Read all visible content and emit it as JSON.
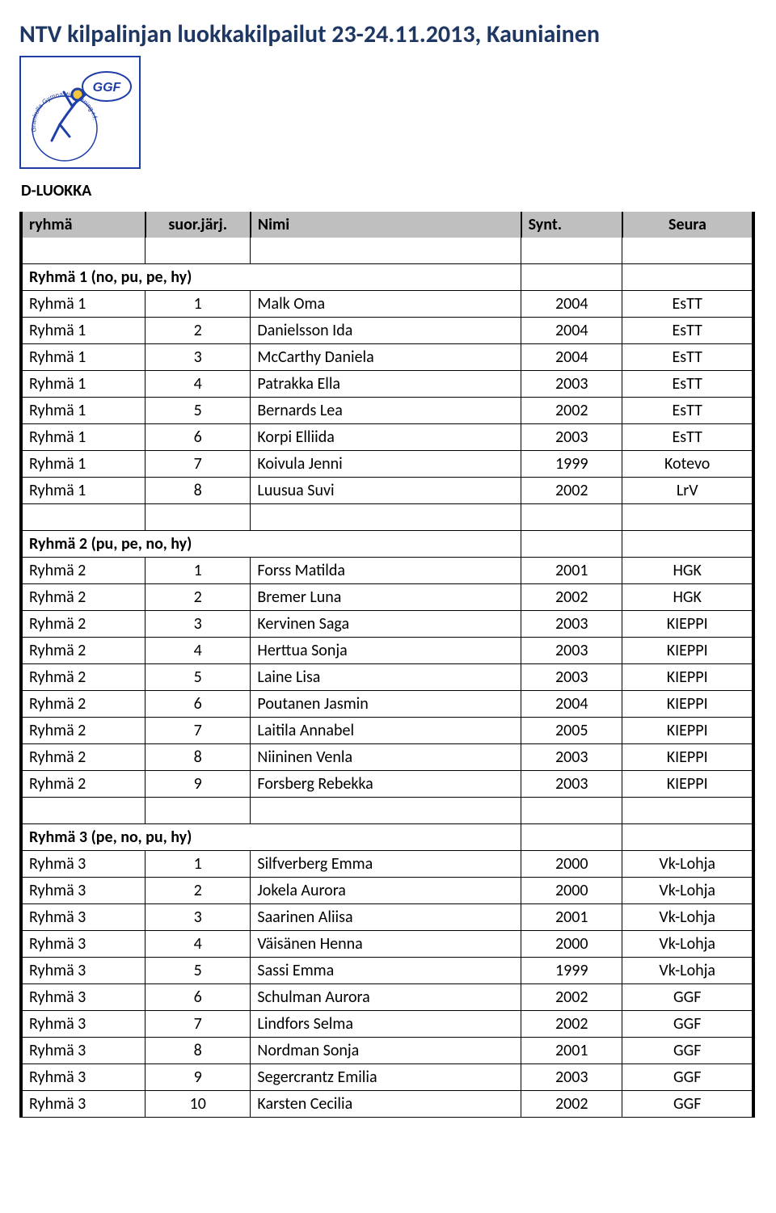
{
  "title": "NTV kilpalinjan luokkakilpailut 23-24.11.2013, Kauniainen",
  "section_label": "D-LUOKKA",
  "logo": {
    "text_top": "GGF",
    "text_ring": "Grankulla Gymnastikförening r.f.",
    "colors": {
      "blue": "#1f3fa8",
      "yellow": "#f5c53a",
      "bg": "#ffffff"
    }
  },
  "columns": {
    "ryhma": "ryhmä",
    "jarj": "suor.järj.",
    "nimi": "Nimi",
    "synt": "Synt.",
    "seura": "Seura"
  },
  "groups": [
    {
      "header": "Ryhmä 1 (no, pu, pe, hy)",
      "rows": [
        {
          "ryhma": "Ryhmä 1",
          "jarj": "1",
          "nimi": "Malk Oma",
          "synt": "2004",
          "seura": "EsTT"
        },
        {
          "ryhma": "Ryhmä 1",
          "jarj": "2",
          "nimi": "Danielsson Ida",
          "synt": "2004",
          "seura": "EsTT"
        },
        {
          "ryhma": "Ryhmä 1",
          "jarj": "3",
          "nimi": "McCarthy Daniela",
          "synt": "2004",
          "seura": "EsTT"
        },
        {
          "ryhma": "Ryhmä 1",
          "jarj": "4",
          "nimi": "Patrakka Ella",
          "synt": "2003",
          "seura": "EsTT"
        },
        {
          "ryhma": "Ryhmä 1",
          "jarj": "5",
          "nimi": "Bernards Lea",
          "synt": "2002",
          "seura": "EsTT"
        },
        {
          "ryhma": "Ryhmä 1",
          "jarj": "6",
          "nimi": "Korpi Elliida",
          "synt": "2003",
          "seura": "EsTT"
        },
        {
          "ryhma": "Ryhmä 1",
          "jarj": "7",
          "nimi": "Koivula Jenni",
          "synt": "1999",
          "seura": "Kotevo"
        },
        {
          "ryhma": "Ryhmä 1",
          "jarj": "8",
          "nimi": "Luusua Suvi",
          "synt": "2002",
          "seura": "LrV"
        }
      ]
    },
    {
      "header": "Ryhmä 2 (pu, pe, no, hy)",
      "rows": [
        {
          "ryhma": "Ryhmä 2",
          "jarj": "1",
          "nimi": "Forss Matilda",
          "synt": "2001",
          "seura": "HGK"
        },
        {
          "ryhma": "Ryhmä 2",
          "jarj": "2",
          "nimi": "Bremer Luna",
          "synt": "2002",
          "seura": "HGK"
        },
        {
          "ryhma": "Ryhmä 2",
          "jarj": "3",
          "nimi": "Kervinen Saga",
          "synt": "2003",
          "seura": "KIEPPI"
        },
        {
          "ryhma": "Ryhmä 2",
          "jarj": "4",
          "nimi": "Herttua Sonja",
          "synt": "2003",
          "seura": "KIEPPI"
        },
        {
          "ryhma": "Ryhmä 2",
          "jarj": "5",
          "nimi": "Laine Lisa",
          "synt": "2003",
          "seura": "KIEPPI"
        },
        {
          "ryhma": "Ryhmä 2",
          "jarj": "6",
          "nimi": "Poutanen Jasmin",
          "synt": "2004",
          "seura": "KIEPPI"
        },
        {
          "ryhma": "Ryhmä 2",
          "jarj": "7",
          "nimi": "Laitila Annabel",
          "synt": "2005",
          "seura": "KIEPPI"
        },
        {
          "ryhma": "Ryhmä 2",
          "jarj": "8",
          "nimi": "Niininen Venla",
          "synt": "2003",
          "seura": "KIEPPI"
        },
        {
          "ryhma": "Ryhmä 2",
          "jarj": "9",
          "nimi": "Forsberg Rebekka",
          "synt": "2003",
          "seura": "KIEPPI"
        }
      ]
    },
    {
      "header": "Ryhmä 3 (pe, no, pu, hy)",
      "rows": [
        {
          "ryhma": "Ryhmä 3",
          "jarj": "1",
          "nimi": "Silfverberg Emma",
          "synt": "2000",
          "seura": "Vk-Lohja"
        },
        {
          "ryhma": "Ryhmä 3",
          "jarj": "2",
          "nimi": "Jokela Aurora",
          "synt": "2000",
          "seura": "Vk-Lohja"
        },
        {
          "ryhma": "Ryhmä 3",
          "jarj": "3",
          "nimi": "Saarinen Aliisa",
          "synt": "2001",
          "seura": "Vk-Lohja"
        },
        {
          "ryhma": "Ryhmä 3",
          "jarj": "4",
          "nimi": "Väisänen Henna",
          "synt": "2000",
          "seura": "Vk-Lohja"
        },
        {
          "ryhma": "Ryhmä 3",
          "jarj": "5",
          "nimi": "Sassi Emma",
          "synt": "1999",
          "seura": "Vk-Lohja"
        },
        {
          "ryhma": "Ryhmä 3",
          "jarj": "6",
          "nimi": "Schulman Aurora",
          "synt": "2002",
          "seura": "GGF"
        },
        {
          "ryhma": "Ryhmä 3",
          "jarj": "7",
          "nimi": "Lindfors Selma",
          "synt": "2002",
          "seura": "GGF"
        },
        {
          "ryhma": "Ryhmä 3",
          "jarj": "8",
          "nimi": "Nordman Sonja",
          "synt": "2001",
          "seura": "GGF"
        },
        {
          "ryhma": "Ryhmä 3",
          "jarj": "9",
          "nimi": "Segercrantz Emilia",
          "synt": "2003",
          "seura": "GGF"
        },
        {
          "ryhma": "Ryhmä 3",
          "jarj": "10",
          "nimi": "Karsten Cecilia",
          "synt": "2002",
          "seura": "GGF"
        }
      ]
    }
  ]
}
